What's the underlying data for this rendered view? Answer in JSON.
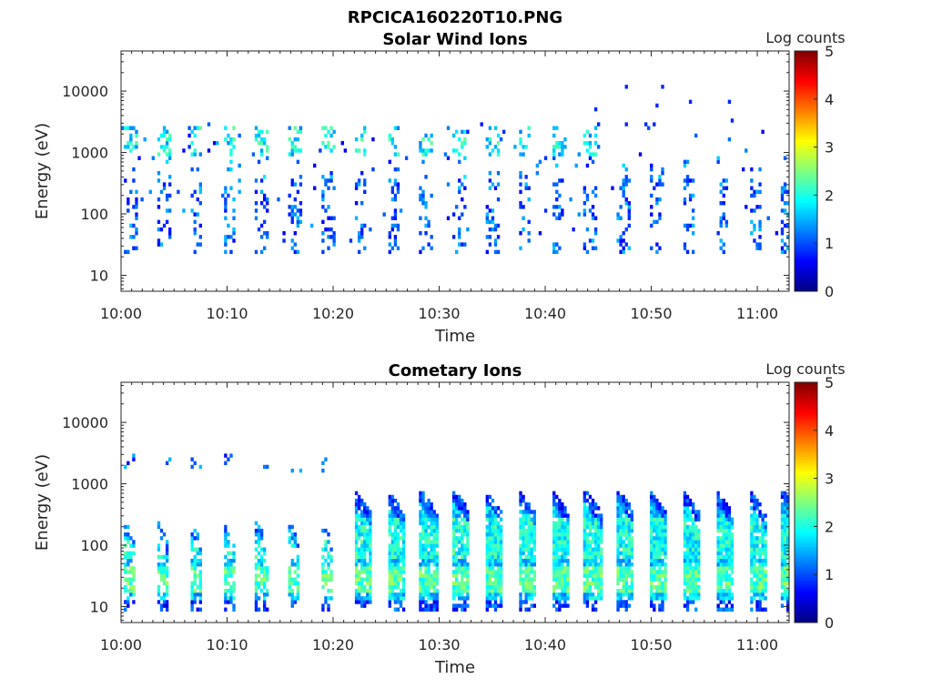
{
  "figure_title": "RPCICA160220T10.PNG",
  "chart_data": [
    {
      "type": "heatmap",
      "title": "Solar Wind Ions",
      "xlabel": "Time",
      "ylabel": "Energy (eV)",
      "x_range": [
        "10:00",
        "11:03"
      ],
      "x_ticks": [
        "10:00",
        "10:10",
        "10:20",
        "10:30",
        "10:40",
        "10:50",
        "11:00"
      ],
      "y_scale": "log",
      "y_range": [
        5.5,
        45000
      ],
      "y_ticks": [
        "10",
        "100",
        "1000",
        "10000"
      ],
      "colorbar": {
        "label": "Log counts",
        "min": 0,
        "max": 5,
        "ticks": [
          "0",
          "1",
          "2",
          "3",
          "4",
          "5"
        ],
        "colormap": "jet"
      },
      "pattern": "sparse speckled counts in periodic scans about every 3 minutes, with bands near 1000-2500 eV and 25-100 eV; mostly log counts 0.5-2.5",
      "scan_period_minutes": 3.1
    },
    {
      "type": "heatmap",
      "title": "Cometary Ions",
      "xlabel": "Time",
      "ylabel": "Energy (eV)",
      "x_range": [
        "10:00",
        "11:03"
      ],
      "x_ticks": [
        "10:00",
        "10:10",
        "10:20",
        "10:30",
        "10:40",
        "10:50",
        "11:00"
      ],
      "y_scale": "log",
      "y_range": [
        5.5,
        45000
      ],
      "y_ticks": [
        "10",
        "100",
        "1000",
        "10000"
      ],
      "colorbar": {
        "label": "Log counts",
        "min": 0,
        "max": 5,
        "ticks": [
          "0",
          "1",
          "2",
          "3",
          "4",
          "5"
        ],
        "colormap": "jet"
      },
      "pattern": "periodic plume-shaped enhancements every ~3 minutes spanning ~12-800 eV after 10:21, peak log counts ~3 near 20-40 eV",
      "scan_period_minutes": 3.1
    }
  ]
}
